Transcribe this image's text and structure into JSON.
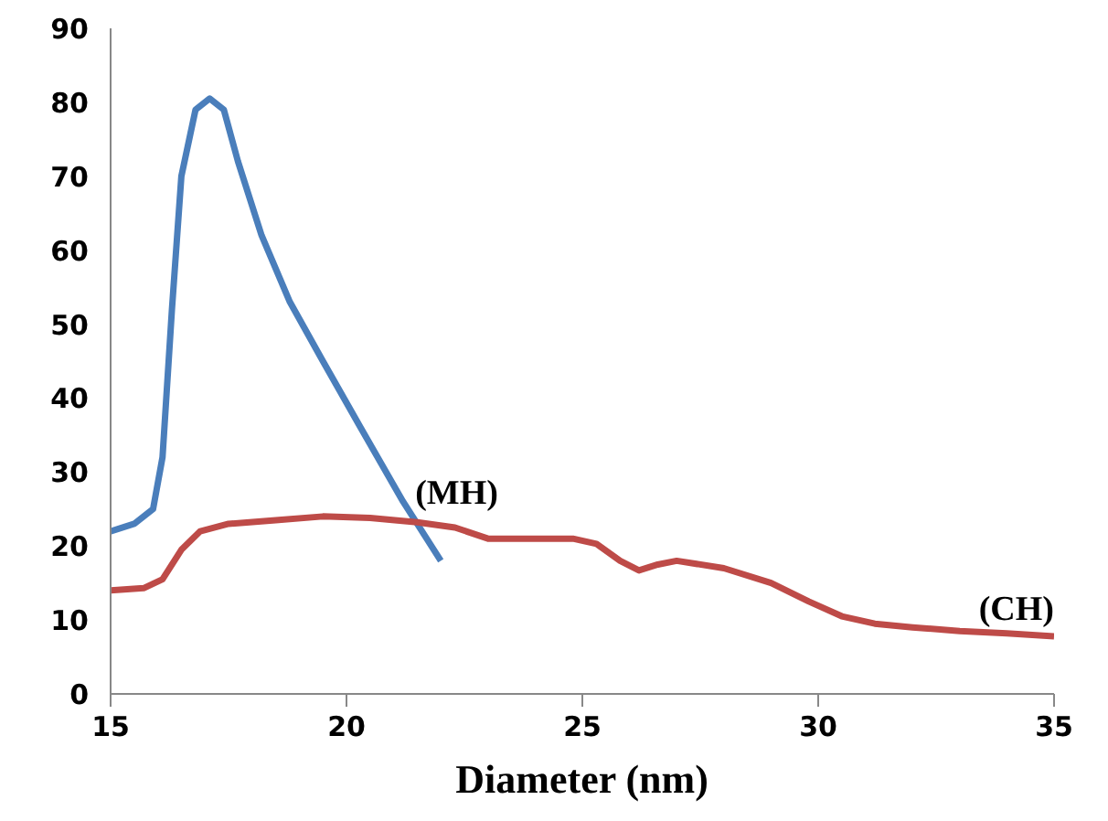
{
  "chart_data": {
    "type": "line",
    "xlabel": "Diameter (nm)",
    "xlim": [
      15,
      35
    ],
    "xticks": [
      15,
      20,
      25,
      30,
      35
    ],
    "ylim": [
      0,
      90
    ],
    "yticks": [
      0,
      10,
      20,
      30,
      40,
      50,
      60,
      70,
      80,
      90
    ],
    "grid": false,
    "series": [
      {
        "name": "(MH)",
        "color": "#4a7ebb",
        "x": [
          15,
          15.5,
          15.9,
          16.1,
          16.3,
          16.5,
          16.8,
          17.1,
          17.4,
          17.7,
          18.2,
          18.8,
          19.5,
          20.3,
          21.2,
          22
        ],
        "values": [
          22,
          23,
          25,
          32,
          52,
          70,
          79,
          80.5,
          79,
          72,
          62,
          53,
          45,
          36,
          26,
          18
        ]
      },
      {
        "name": "(CH)",
        "color": "#be4b48",
        "x": [
          15,
          15.7,
          16.1,
          16.5,
          16.9,
          17.5,
          18.5,
          19.5,
          20.5,
          21.5,
          22.3,
          23,
          24,
          24.8,
          25.3,
          25.8,
          26.2,
          26.6,
          27,
          28,
          29,
          29.8,
          30.5,
          31.2,
          32,
          33,
          34,
          35
        ],
        "values": [
          14,
          14.3,
          15.5,
          19.5,
          22,
          23,
          23.5,
          24,
          23.8,
          23.2,
          22.5,
          21,
          21,
          21,
          20.3,
          18,
          16.7,
          17.5,
          18,
          17,
          15,
          12.5,
          10.5,
          9.5,
          9,
          8.5,
          8.2,
          7.8
        ]
      }
    ]
  }
}
